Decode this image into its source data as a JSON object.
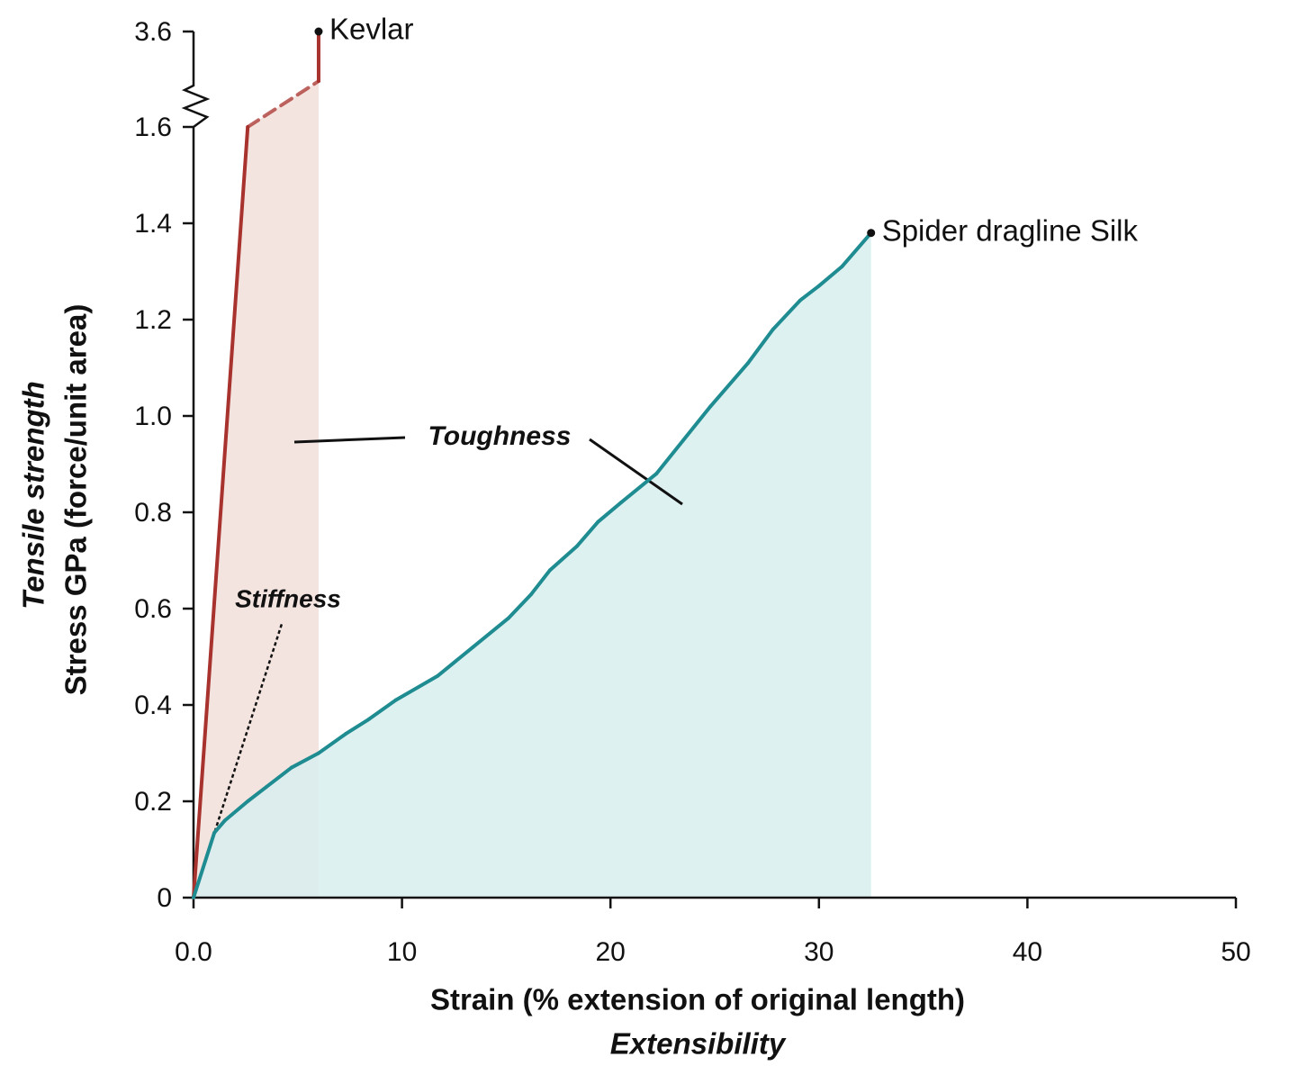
{
  "chart_data": {
    "type": "line",
    "x_title": "Strain (% extension of original length)",
    "x_subtitle": "Extensibility",
    "y_title": "Stress GPa (force/unit area)",
    "y_subtitle": "Tensile strength",
    "annotations": [
      "Toughness",
      "Stiffness"
    ],
    "xlim": [
      0,
      50
    ],
    "xticks": [
      {
        "value": 0,
        "label": "0.0"
      },
      10,
      20,
      30,
      40,
      50
    ],
    "ylim": [
      0,
      3.6
    ],
    "y_break": 1.6,
    "yticks": [
      0,
      0.2,
      0.4,
      0.6,
      0.8,
      {
        "value": 1,
        "label": "1.0"
      },
      1.2,
      1.4,
      1.6,
      3.6
    ],
    "series": [
      {
        "name": "Kevlar",
        "color": "#a8322d",
        "fill_color": "#f2dfda",
        "x": [
          0,
          2.6,
          6.0,
          6.0
        ],
        "values": [
          0,
          1.6,
          2.56,
          3.6
        ],
        "dashed_segments": [
          1
        ]
      },
      {
        "name": "Spider dragline Silk",
        "color": "#1e8c91",
        "fill_color": "#d8eeee",
        "x": [
          0,
          1,
          1.5,
          2.6,
          3.5,
          4.7,
          6,
          7.3,
          8.4,
          9.7,
          11.7,
          13.4,
          15.1,
          16.2,
          17.1,
          18.4,
          19.4,
          20.5,
          22.2,
          23.5,
          24.8,
          26.6,
          27.8,
          29.1,
          30,
          31.1,
          32.5
        ],
        "values": [
          0,
          0.135,
          0.16,
          0.2,
          0.23,
          0.27,
          0.3,
          0.34,
          0.37,
          0.41,
          0.46,
          0.52,
          0.58,
          0.63,
          0.68,
          0.73,
          0.78,
          0.82,
          0.88,
          0.95,
          1.02,
          1.11,
          1.18,
          1.24,
          1.27,
          1.31,
          1.38
        ],
        "dashed_segments": []
      }
    ]
  }
}
